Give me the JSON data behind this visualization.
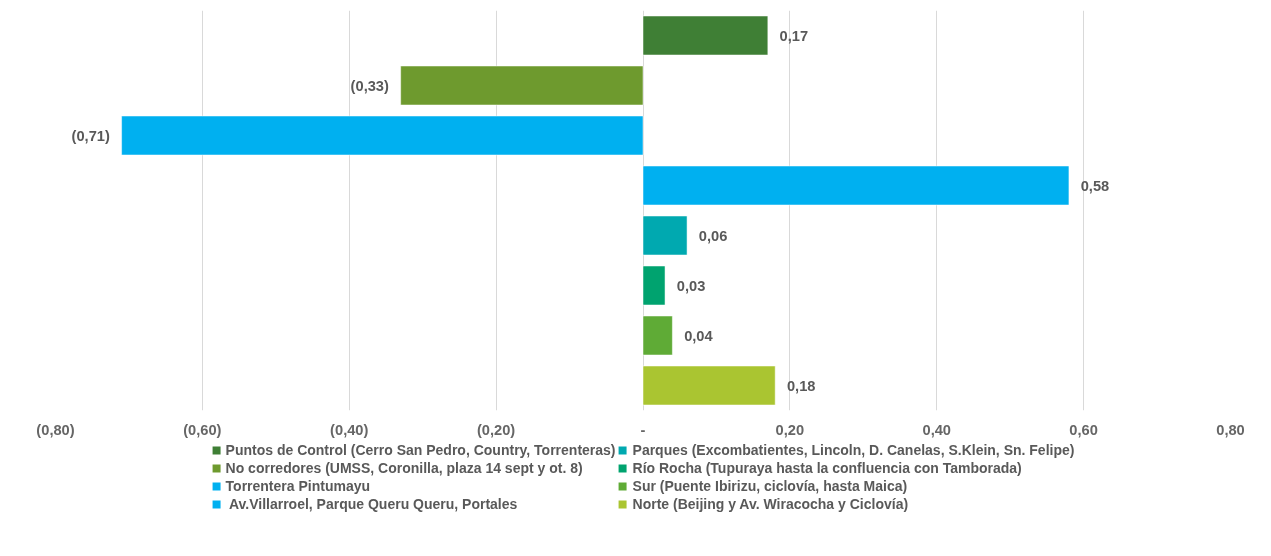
{
  "chart_data": {
    "type": "bar",
    "orientation": "horizontal",
    "categories": [
      null,
      null,
      null,
      null,
      null,
      null,
      null,
      null
    ],
    "series": [
      {
        "name": "Puntos de Control (Cerro San Pedro, Country, Torrenteras)",
        "color": "#3f7f35",
        "values": [
          0.17,
          null,
          null,
          null,
          null,
          null,
          null,
          null
        ],
        "value_labels": [
          "0,17",
          null,
          null,
          null,
          null,
          null,
          null,
          null
        ]
      },
      {
        "name": "No corredores (UMSS, Coronilla, plaza 14 sept y ot. 8)",
        "color": "#6e9a2e",
        "values": [
          null,
          -0.33,
          null,
          null,
          null,
          null,
          null,
          null
        ],
        "value_labels": [
          null,
          "(0,33)",
          null,
          null,
          null,
          null,
          null,
          null
        ]
      },
      {
        "name": "Torrentera Pintumayu",
        "color": "#00b0f0",
        "values": [
          null,
          null,
          -0.71,
          null,
          null,
          null,
          null,
          null
        ],
        "value_labels": [
          null,
          null,
          "(0,71)",
          null,
          null,
          null,
          null,
          null
        ]
      },
      {
        "name": " Av.Villarroel, Parque Queru Queru, Portales",
        "color": "#00b0f0",
        "values": [
          null,
          null,
          null,
          0.58,
          null,
          null,
          null,
          null
        ],
        "value_labels": [
          null,
          null,
          null,
          "0,58",
          null,
          null,
          null,
          null
        ]
      },
      {
        "name": "Parques (Excombatientes, Lincoln, D. Canelas, S.Klein, Sn. Felipe)",
        "color": "#00a9b0",
        "values": [
          null,
          null,
          null,
          null,
          0.06,
          null,
          null,
          null
        ],
        "value_labels": [
          null,
          null,
          null,
          null,
          "0,06",
          null,
          null,
          null
        ]
      },
      {
        "name": "Río Rocha (Tupuraya hasta la confluencia con Tamborada)",
        "color": "#00a36f",
        "values": [
          null,
          null,
          null,
          null,
          null,
          0.03,
          null,
          null
        ],
        "value_labels": [
          null,
          null,
          null,
          null,
          null,
          "0,03",
          null,
          null
        ]
      },
      {
        "name": "Sur (Puente Ibirizu, ciclovía, hasta Maica)",
        "color": "#5fab36",
        "values": [
          null,
          null,
          null,
          null,
          null,
          null,
          0.04,
          null
        ],
        "value_labels": [
          null,
          null,
          null,
          null,
          null,
          null,
          "0,04",
          null
        ]
      },
      {
        "name": "Norte (Beijing y Av. Wiracocha y Ciclovía)",
        "color": "#aac531",
        "values": [
          null,
          null,
          null,
          null,
          null,
          null,
          null,
          0.18
        ],
        "value_labels": [
          null,
          null,
          null,
          null,
          null,
          null,
          null,
          "0,18"
        ]
      }
    ],
    "xlim": [
      -0.8,
      0.8
    ],
    "xticks": [
      {
        "value": -0.8,
        "label": "(0,80)"
      },
      {
        "value": -0.6,
        "label": "(0,60)"
      },
      {
        "value": -0.4,
        "label": "(0,40)"
      },
      {
        "value": -0.2,
        "label": "(0,20)"
      },
      {
        "value": 0,
        "label": "-"
      },
      {
        "value": 0.2,
        "label": "0,20"
      },
      {
        "value": 0.4,
        "label": "0,40"
      },
      {
        "value": 0.6,
        "label": "0,60"
      },
      {
        "value": 0.8,
        "label": "0,80"
      }
    ],
    "grid": "x",
    "legend": "bottom"
  }
}
